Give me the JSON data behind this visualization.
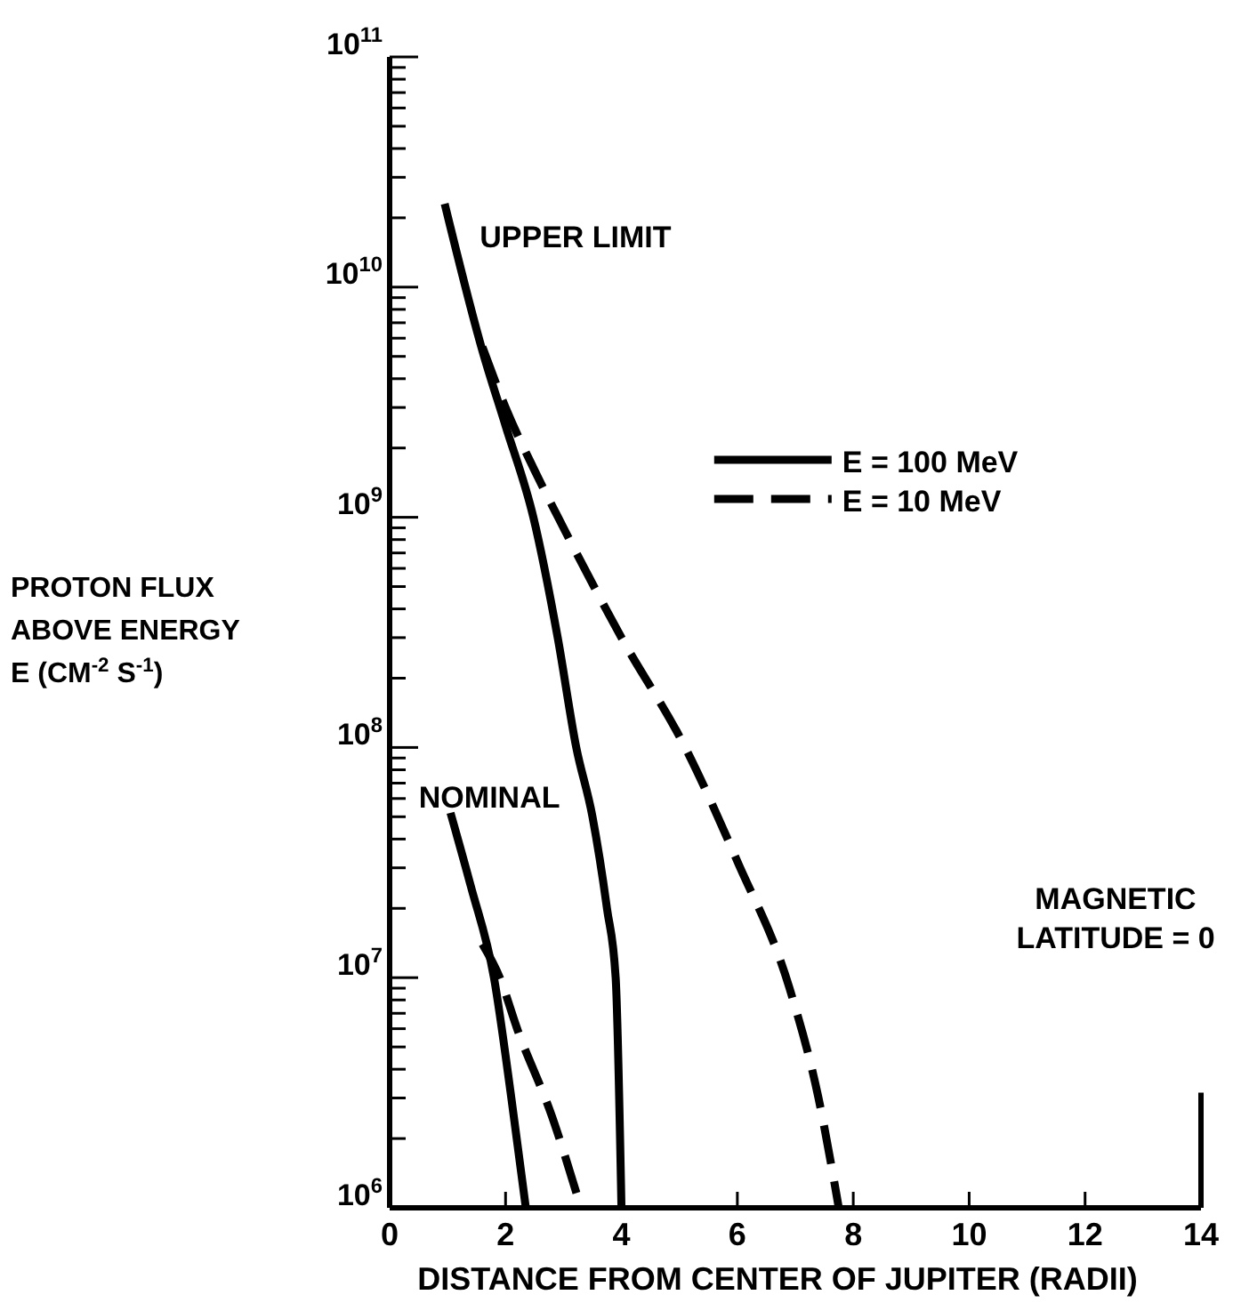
{
  "chart_data": {
    "type": "line",
    "xlabel": "DISTANCE FROM CENTER OF JUPITER (RADII)",
    "ylabel": "PROTON FLUX ABOVE ENERGY E (CM$^{-2}$ S$^{-1}$)",
    "log": "y",
    "xlim": [
      0,
      14
    ],
    "xticks": [
      0,
      2,
      4,
      6,
      8,
      10,
      12,
      14
    ],
    "ylim": [
      1000000,
      100000000000
    ],
    "yticks": [
      {
        "value": 1000000,
        "label": "10$^{6}$"
      },
      {
        "value": 2000000,
        "label": null
      },
      {
        "value": 3000000,
        "label": null
      },
      {
        "value": 4000000,
        "label": null
      },
      {
        "value": 5000000,
        "label": null
      },
      {
        "value": 6000000,
        "label": null
      },
      {
        "value": 7000000,
        "label": null
      },
      {
        "value": 8000000,
        "label": null
      },
      {
        "value": 9000000,
        "label": null
      },
      {
        "value": 10000000,
        "label": "10$^{7}$"
      },
      {
        "value": 20000000,
        "label": null
      },
      {
        "value": 30000000,
        "label": null
      },
      {
        "value": 40000000,
        "label": null
      },
      {
        "value": 50000000,
        "label": null
      },
      {
        "value": 60000000,
        "label": null
      },
      {
        "value": 70000000,
        "label": null
      },
      {
        "value": 80000000,
        "label": null
      },
      {
        "value": 90000000,
        "label": null
      },
      {
        "value": 100000000,
        "label": "10$^{8}$"
      },
      {
        "value": 200000000,
        "label": null
      },
      {
        "value": 300000000,
        "label": null
      },
      {
        "value": 400000000,
        "label": null
      },
      {
        "value": 500000000,
        "label": null
      },
      {
        "value": 600000000,
        "label": null
      },
      {
        "value": 700000000,
        "label": null
      },
      {
        "value": 800000000,
        "label": null
      },
      {
        "value": 900000000,
        "label": null
      },
      {
        "value": 1000000000,
        "label": "10$^{9}$"
      },
      {
        "value": 2000000000,
        "label": null
      },
      {
        "value": 3000000000,
        "label": null
      },
      {
        "value": 4000000000,
        "label": null
      },
      {
        "value": 5000000000,
        "label": null
      },
      {
        "value": 6000000000,
        "label": null
      },
      {
        "value": 7000000000,
        "label": null
      },
      {
        "value": 8000000000,
        "label": null
      },
      {
        "value": 9000000000,
        "label": null
      },
      {
        "value": 10000000000,
        "label": "10$^{10}$"
      },
      {
        "value": 20000000000,
        "label": null
      },
      {
        "value": 30000000000,
        "label": null
      },
      {
        "value": 40000000000,
        "label": null
      },
      {
        "value": 50000000000,
        "label": null
      },
      {
        "value": 60000000000,
        "label": null
      },
      {
        "value": 70000000000,
        "label": null
      },
      {
        "value": 80000000000,
        "label": null
      },
      {
        "value": 90000000000,
        "label": null
      },
      {
        "value": 100000000000,
        "label": "10$^{11}$"
      }
    ],
    "grid": false,
    "legend": "right",
    "marker": "none",
    "series": [
      {
        "name": "E = 100 MeV",
        "color": "#000000",
        "line_style": "solid",
        "x": [
          0.95,
          1.6,
          2.0,
          2.48,
          2.9,
          3.22,
          3.5,
          3.75,
          3.9,
          4.0
        ],
        "values": [
          23000000000,
          5300000000,
          2500000000,
          1000000000,
          300000000,
          100000000,
          50000000,
          20000000,
          10000000,
          1000000
        ]
      },
      {
        "name": "E = 10 MeV",
        "color": "#000000",
        "line_style": "dashed",
        "x": [
          1.6,
          2.0,
          2.5,
          3.0,
          4.0,
          5.1,
          6.0,
          6.9,
          7.4,
          7.75
        ],
        "values": [
          5500000000,
          3000000000,
          1600000000,
          900000000,
          300000000,
          100000000,
          32000000,
          9000000,
          3000000,
          1000000
        ]
      },
      {
        "color": "#000000",
        "line_style": "solid",
        "x": [
          1.05,
          1.4,
          1.8,
          2.1,
          2.35
        ],
        "values": [
          52000000,
          25000000,
          10000000,
          3000000,
          1000000
        ]
      },
      {
        "color": "#000000",
        "line_style": "dashed",
        "x": [
          1.6,
          1.9,
          2.2,
          2.8,
          3.3
        ],
        "values": [
          14000000,
          10000000,
          6000000,
          2500000,
          1000000
        ]
      }
    ],
    "annotations": [
      "UPPER LIMIT",
      "NOMINAL",
      "MAGNETIC LATITUDE = 0"
    ]
  }
}
